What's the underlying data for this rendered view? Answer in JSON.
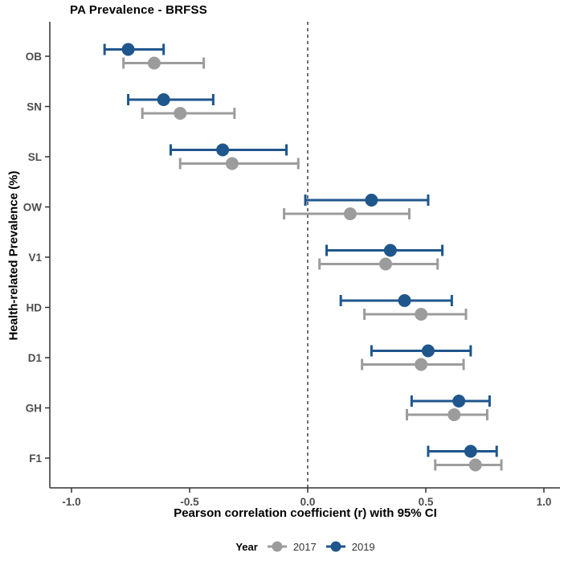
{
  "chart_data": {
    "type": "scatter",
    "variant": "forest-dot-whisker",
    "title": "PA Prevalence - BRFSS",
    "xlabel": "Pearson correlation coefficient (r) with 95% CI",
    "ylabel": "Health-related Prevalence (%)",
    "categories": [
      "OB",
      "SN",
      "SL",
      "OW",
      "V1",
      "HD",
      "D1",
      "GH",
      "F1"
    ],
    "x_ticks": [
      -1.0,
      -0.5,
      0.0,
      0.5,
      1.0
    ],
    "x_tick_labels": [
      "-1.0",
      "-0.5",
      "0.0",
      "0.5",
      "1.0"
    ],
    "xlim": [
      -1.09,
      1.07
    ],
    "reference_line_x": 0,
    "grid": false,
    "legend": {
      "title": "Year",
      "position": "bottom",
      "entries": [
        {
          "label": "2017",
          "color": "#9c9c9c"
        },
        {
          "label": "2019",
          "color": "#1f568c"
        }
      ]
    },
    "series": [
      {
        "name": "2017",
        "color": "#9c9c9c",
        "row_offset": "below",
        "points": [
          {
            "category": "OB",
            "r": -0.65,
            "ci_low": -0.78,
            "ci_high": -0.44
          },
          {
            "category": "SN",
            "r": -0.54,
            "ci_low": -0.7,
            "ci_high": -0.31
          },
          {
            "category": "SL",
            "r": -0.32,
            "ci_low": -0.54,
            "ci_high": -0.04
          },
          {
            "category": "OW",
            "r": 0.18,
            "ci_low": -0.1,
            "ci_high": 0.43
          },
          {
            "category": "V1",
            "r": 0.33,
            "ci_low": 0.05,
            "ci_high": 0.55
          },
          {
            "category": "HD",
            "r": 0.48,
            "ci_low": 0.24,
            "ci_high": 0.67
          },
          {
            "category": "D1",
            "r": 0.48,
            "ci_low": 0.23,
            "ci_high": 0.66
          },
          {
            "category": "GH",
            "r": 0.62,
            "ci_low": 0.42,
            "ci_high": 0.76
          },
          {
            "category": "F1",
            "r": 0.71,
            "ci_low": 0.54,
            "ci_high": 0.82
          }
        ]
      },
      {
        "name": "2019",
        "color": "#1f568c",
        "row_offset": "above",
        "points": [
          {
            "category": "OB",
            "r": -0.76,
            "ci_low": -0.86,
            "ci_high": -0.61
          },
          {
            "category": "SN",
            "r": -0.61,
            "ci_low": -0.76,
            "ci_high": -0.4
          },
          {
            "category": "SL",
            "r": -0.36,
            "ci_low": -0.58,
            "ci_high": -0.09
          },
          {
            "category": "OW",
            "r": 0.27,
            "ci_low": -0.01,
            "ci_high": 0.51
          },
          {
            "category": "V1",
            "r": 0.35,
            "ci_low": 0.08,
            "ci_high": 0.57
          },
          {
            "category": "HD",
            "r": 0.41,
            "ci_low": 0.14,
            "ci_high": 0.61
          },
          {
            "category": "D1",
            "r": 0.51,
            "ci_low": 0.27,
            "ci_high": 0.69
          },
          {
            "category": "GH",
            "r": 0.64,
            "ci_low": 0.44,
            "ci_high": 0.77
          },
          {
            "category": "F1",
            "r": 0.69,
            "ci_low": 0.51,
            "ci_high": 0.8
          }
        ]
      }
    ],
    "colors": {
      "axis": "#333333",
      "tick_label": "#4d4d4d",
      "reference_line": "#333333"
    }
  }
}
